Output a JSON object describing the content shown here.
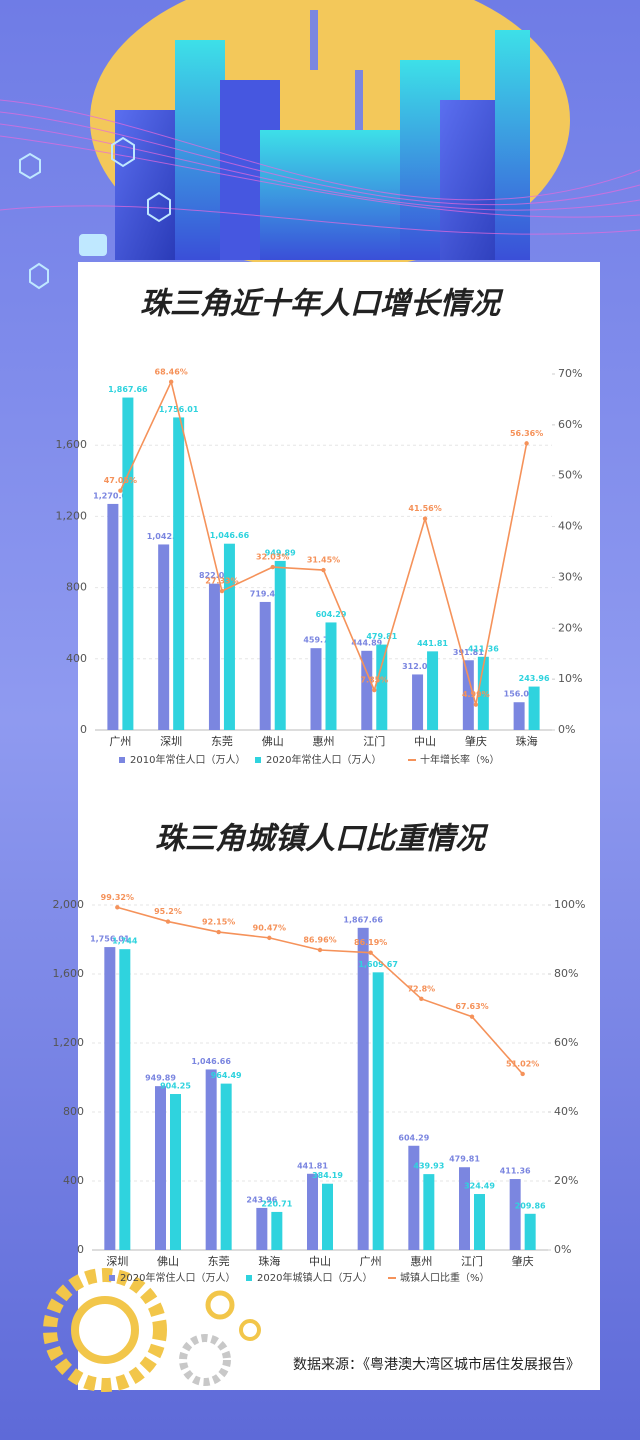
{
  "chart_data": [
    {
      "type": "bar_line",
      "title": "珠三角近十年人口增长情况",
      "categories": [
        "广州",
        "深圳",
        "东莞",
        "佛山",
        "惠州",
        "江门",
        "中山",
        "肇庆",
        "珠海"
      ],
      "series": [
        {
          "name": "2010年常住人口（万人）",
          "color": "#7b86e0",
          "values": [
            1270.08,
            1042.4,
            822.02,
            719.43,
            459.7,
            444.89,
            312.09,
            391.81,
            156.02
          ],
          "value_labels": [
            "1,270.08",
            "1,042.4",
            "822.02",
            "719.43",
            "459.7",
            "444.89",
            "312.09",
            "391.81",
            "156.02"
          ]
        },
        {
          "name": "2020年常住人口（万人）",
          "color": "#2fd3de",
          "values": [
            1867.66,
            1756.01,
            1046.66,
            949.89,
            604.29,
            479.81,
            441.81,
            411.36,
            243.96
          ],
          "value_labels": [
            "1,867.66",
            "1,756.01",
            "1,046.66",
            "949.89",
            "604.29",
            "479.81",
            "441.81",
            "411.36",
            "243.96"
          ]
        },
        {
          "name": "十年增长率（%）",
          "color": "#f5925a",
          "axis": "y2",
          "values": [
            47.05,
            68.46,
            27.33,
            32.03,
            31.45,
            7.85,
            41.56,
            4.99,
            56.36
          ],
          "value_labels": [
            "47.05%",
            "68.46%",
            "27.33%",
            "32.03%",
            "31.45%",
            "7.85%",
            "41.56%",
            "4.99%",
            "56.36%"
          ]
        }
      ],
      "ylim": [
        0,
        2000
      ],
      "yticks": [
        0,
        400,
        800,
        {
          "value": 1200,
          "label": "1,200"
        },
        {
          "value": 1600,
          "label": "1,600"
        }
      ],
      "y2lim": [
        0,
        70
      ],
      "y2ticks": [
        {
          "value": 0,
          "label": "0%"
        },
        {
          "value": 10,
          "label": "10%"
        },
        {
          "value": 20,
          "label": "20%"
        },
        {
          "value": 30,
          "label": "30%"
        },
        {
          "value": 40,
          "label": "40%"
        },
        {
          "value": 50,
          "label": "50%"
        },
        {
          "value": 60,
          "label": "60%"
        },
        {
          "value": 70,
          "label": "70%"
        }
      ],
      "grid": true
    },
    {
      "type": "bar_line",
      "title": "珠三角城镇人口比重情况",
      "categories": [
        "深圳",
        "佛山",
        "东莞",
        "珠海",
        "中山",
        "广州",
        "惠州",
        "江门",
        "肇庆"
      ],
      "series": [
        {
          "name": "2020年常住人口（万人）",
          "color": "#7b86e0",
          "values": [
            1756.01,
            949.89,
            1046.66,
            243.96,
            441.81,
            1867.66,
            604.29,
            479.81,
            411.36
          ],
          "value_labels": [
            "1,756.01",
            "949.89",
            "1,046.66",
            "243.96",
            "441.81",
            "1,867.66",
            "604.29",
            "479.81",
            "411.36"
          ]
        },
        {
          "name": "2020年城镇人口（万人）",
          "color": "#2fd3de",
          "values": [
            1744,
            904.25,
            964.49,
            220.71,
            384.19,
            1609.67,
            439.93,
            324.49,
            209.86
          ],
          "value_labels": [
            "1,744",
            "904.25",
            "964.49",
            "220.71",
            "384.19",
            "1,609.67",
            "439.93",
            "324.49",
            "209.86"
          ]
        },
        {
          "name": "城镇人口比重（%）",
          "color": "#f5925a",
          "axis": "y2",
          "values": [
            99.32,
            95.2,
            92.15,
            90.47,
            86.96,
            86.19,
            72.8,
            67.63,
            51.02
          ],
          "value_labels": [
            "99.32%",
            "95.2%",
            "92.15%",
            "90.47%",
            "86.96%",
            "86.19%",
            "72.8%",
            "67.63%",
            "51.02%"
          ]
        }
      ],
      "ylim": [
        0,
        2000
      ],
      "yticks": [
        0,
        400,
        800,
        {
          "value": 1200,
          "label": "1,200"
        },
        {
          "value": 1600,
          "label": "1,600"
        },
        {
          "value": 2000,
          "label": "2,000"
        }
      ],
      "y2lim": [
        0,
        100
      ],
      "y2ticks": [
        {
          "value": 0,
          "label": "0%"
        },
        {
          "value": 20,
          "label": "20%"
        },
        {
          "value": 40,
          "label": "40%"
        },
        {
          "value": 60,
          "label": "60%"
        },
        {
          "value": 80,
          "label": "80%"
        },
        {
          "value": 100,
          "label": "100%"
        }
      ],
      "grid": true
    }
  ],
  "source": "数据来源：《粤港澳大湾区城市居住发展报告》"
}
